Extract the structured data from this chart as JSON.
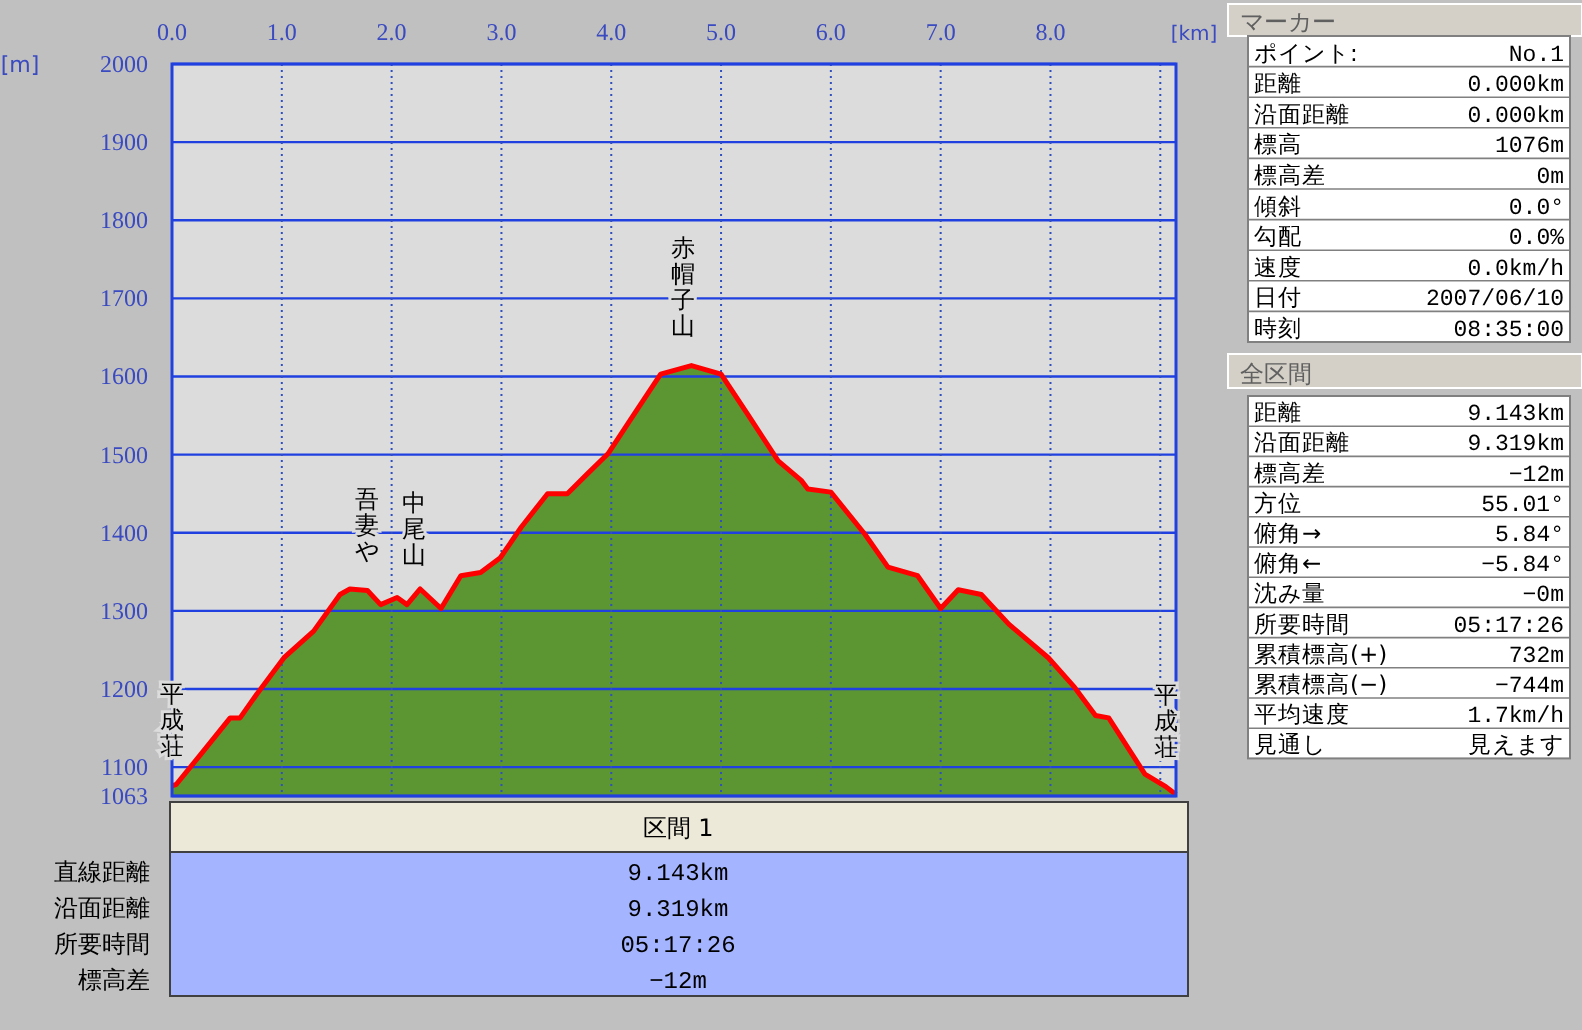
{
  "chart_data": [
    {
      "type": "area",
      "xlabel": "[km]",
      "ylabel": "[m]",
      "xlim": [
        0,
        9.143
      ],
      "ylim": [
        1063,
        2000
      ],
      "xticks": [
        {
          "value": 0,
          "label": "0.0"
        },
        {
          "value": 1,
          "label": "1.0"
        },
        {
          "value": 2,
          "label": "2.0"
        },
        {
          "value": 3,
          "label": "3.0"
        },
        {
          "value": 4,
          "label": "4.0"
        },
        {
          "value": 5,
          "label": "5.0"
        },
        {
          "value": 6,
          "label": "6.0"
        },
        {
          "value": 7,
          "label": "7.0"
        },
        {
          "value": 8,
          "label": "8.0"
        },
        {
          "value": 9,
          "label": null
        }
      ],
      "yticks": [
        1063,
        1100,
        1200,
        1300,
        1400,
        1500,
        1600,
        1700,
        1800,
        1900,
        2000
      ],
      "grid": true,
      "series": [
        {
          "color": "#5b9632",
          "x": [
            0,
            0.04,
            0.26,
            0.53,
            0.62,
            0.77,
            1.02,
            1.29,
            1.53,
            1.62,
            1.78,
            1.9,
            2.05,
            2.14,
            2.26,
            2.45,
            2.63,
            2.81,
            2.99,
            3.18,
            3.42,
            3.6,
            3.78,
            3.97,
            4.21,
            4.45,
            4.73,
            5.0,
            5.24,
            5.52,
            5.73,
            5.79,
            6.0,
            6.31,
            6.52,
            6.79,
            7.0,
            7.16,
            7.37,
            7.62,
            7.98,
            8.22,
            8.41,
            8.53,
            8.86,
            9.05,
            9.143
          ],
          "values": [
            1076,
            1078,
            1116,
            1163,
            1163,
            1193,
            1240,
            1274,
            1321,
            1328,
            1326,
            1308,
            1317,
            1308,
            1328,
            1303,
            1345,
            1349,
            1368,
            1407,
            1450,
            1450,
            1475,
            1501,
            1552,
            1603,
            1614,
            1603,
            1552,
            1492,
            1467,
            1456,
            1452,
            1398,
            1356,
            1345,
            1303,
            1327,
            1321,
            1283,
            1240,
            1202,
            1166,
            1163,
            1091,
            1075,
            1065
          ]
        }
      ],
      "annotations": [
        {
          "text": "平成荘",
          "x": 0,
          "y": 1076
        },
        {
          "text": "吾妻や",
          "x": 1.78,
          "y": 1326
        },
        {
          "text": "中尾山",
          "x": 2.2,
          "y": 1320
        },
        {
          "text": "赤帽子山",
          "x": 4.65,
          "y": 1614
        },
        {
          "text": "平成荘",
          "x": 9.05,
          "y": 1075
        }
      ]
    },
    {
      "type": "other",
      "title": "マーカー",
      "annotations": [
        "ポイント:",
        "No.1",
        "距離",
        "0.000km",
        "沿面距離",
        "0.000km",
        "標高",
        "1076m",
        "標高差",
        "0m",
        "傾斜",
        "0.0°",
        "勾配",
        "0.0%",
        "速度",
        "0.0km/h",
        "日付",
        "2007/06/10",
        "時刻",
        "08:35:00"
      ]
    },
    {
      "type": "other",
      "title": "全区間",
      "annotations": [
        "距離",
        "9.143km",
        "沿面距離",
        "9.319km",
        "標高差",
        "−12m",
        "方位",
        "55.01°",
        "俯角→",
        "5.84°",
        "俯角←",
        "−5.84°",
        "沈み量",
        "−0m",
        "所要時間",
        "05:17:26",
        "累積標高(+)",
        "732m",
        "累積標高(−)",
        "−744m",
        "平均速度",
        "1.7km/h",
        "見通し",
        "見えます"
      ]
    },
    {
      "type": "other",
      "title": "区間 1",
      "annotations": [
        "直線距離",
        "9.143km",
        "沿面距離",
        "9.319km",
        "所要時間",
        "05:17:26",
        "標高差",
        "−12m"
      ]
    }
  ]
}
